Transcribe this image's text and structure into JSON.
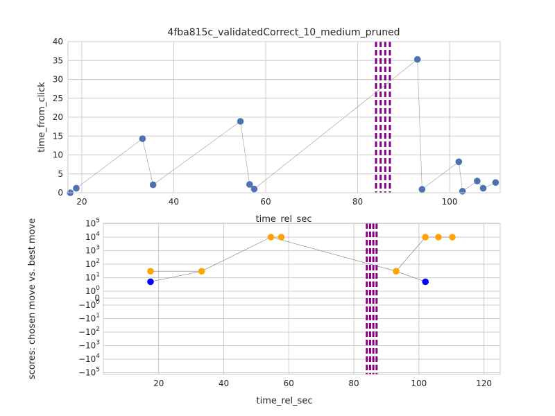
{
  "chart_data": [
    {
      "type": "scatter",
      "title": "4fba815c_validatedCorrect_10_medium_pruned",
      "xlabel": "time_rel_sec",
      "ylabel": "time_from_click",
      "xlim": [
        17,
        111
      ],
      "ylim": [
        0,
        40
      ],
      "xticks": [
        "20",
        "40",
        "60",
        "80",
        "100"
      ],
      "xtick_values": [
        20,
        40,
        60,
        80,
        100
      ],
      "yticks": [
        "0",
        "5",
        "10",
        "15",
        "20",
        "25",
        "30",
        "35",
        "40"
      ],
      "ytick_values": [
        0,
        5,
        10,
        15,
        20,
        25,
        30,
        35,
        40
      ],
      "grid": true,
      "point_color": "#4c72b0",
      "line_color": "#999999",
      "points": [
        {
          "x": 17.5,
          "y": 0.0
        },
        {
          "x": 18.8,
          "y": 1.2
        },
        {
          "x": 33.2,
          "y": 14.3
        },
        {
          "x": 35.5,
          "y": 2.1
        },
        {
          "x": 54.5,
          "y": 18.9
        },
        {
          "x": 56.5,
          "y": 2.2
        },
        {
          "x": 57.5,
          "y": 1.0
        },
        {
          "x": 93.0,
          "y": 35.3
        },
        {
          "x": 94.0,
          "y": 0.9
        },
        {
          "x": 102.0,
          "y": 8.2
        },
        {
          "x": 102.8,
          "y": 0.4
        },
        {
          "x": 106.0,
          "y": 3.1
        },
        {
          "x": 107.3,
          "y": 1.2
        },
        {
          "x": 110.0,
          "y": 2.7
        }
      ],
      "vertical_lines": {
        "x": [
          84.0,
          85.0,
          86.0,
          87.0
        ],
        "color": "#800080",
        "style": "dashed"
      }
    },
    {
      "type": "scatter",
      "xlabel": "time_rel_sec",
      "ylabel": "scores: chosen move vs. best move",
      "xlim": [
        3,
        125
      ],
      "yscale": "symlog",
      "ylim_exponent": [
        -5,
        5
      ],
      "xticks": [
        "20",
        "40",
        "60",
        "80",
        "100",
        "120"
      ],
      "xtick_values": [
        20,
        40,
        60,
        80,
        100,
        120
      ],
      "yticks": [
        {
          "base": "10",
          "exp": "5",
          "value": 100000
        },
        {
          "base": "10",
          "exp": "4",
          "value": 10000
        },
        {
          "base": "10",
          "exp": "3",
          "value": 1000
        },
        {
          "base": "10",
          "exp": "2",
          "value": 100
        },
        {
          "base": "10",
          "exp": "1",
          "value": 10
        },
        {
          "base": "10",
          "exp": "0",
          "value": 1
        },
        {
          "base": "0",
          "exp": "",
          "value": 0
        },
        {
          "base": "−10",
          "exp": "0",
          "value": -1
        },
        {
          "base": "−10",
          "exp": "1",
          "value": -10
        },
        {
          "base": "−10",
          "exp": "2",
          "value": -100
        },
        {
          "base": "−10",
          "exp": "3",
          "value": -1000
        },
        {
          "base": "−10",
          "exp": "4",
          "value": -10000
        },
        {
          "base": "−10",
          "exp": "5",
          "value": -100000
        }
      ],
      "grid": true,
      "line_color": "#777777",
      "series": [
        {
          "color": "#ffa500",
          "points": [
            {
              "x": 17.5,
              "y": 30
            },
            {
              "x": 33.2,
              "y": 30
            },
            {
              "x": 54.5,
              "y": 10000
            },
            {
              "x": 57.7,
              "y": 10000
            },
            {
              "x": 93.0,
              "y": 30
            },
            {
              "x": 102.0,
              "y": 10000
            },
            {
              "x": 106.0,
              "y": 10000
            },
            {
              "x": 110.3,
              "y": 10000
            }
          ]
        },
        {
          "color": "#0000ff",
          "points": [
            {
              "x": 17.5,
              "y": 5
            },
            {
              "x": 102.0,
              "y": 5
            }
          ]
        }
      ],
      "connector_pairs": [
        [
          [
            17.5,
            30
          ],
          [
            33.2,
            30
          ]
        ],
        [
          [
            17.5,
            5
          ],
          [
            33.2,
            30
          ]
        ],
        [
          [
            33.2,
            30
          ],
          [
            54.5,
            10000
          ]
        ],
        [
          [
            54.5,
            10000
          ],
          [
            57.7,
            10000
          ]
        ],
        [
          [
            54.5,
            10000
          ],
          [
            93.0,
            30
          ]
        ],
        [
          [
            93.0,
            30
          ],
          [
            102.0,
            5
          ]
        ],
        [
          [
            93.0,
            30
          ],
          [
            102.0,
            10000
          ]
        ],
        [
          [
            102.0,
            10000
          ],
          [
            106.0,
            10000
          ]
        ],
        [
          [
            106.0,
            10000
          ],
          [
            110.3,
            10000
          ]
        ]
      ],
      "vertical_lines": {
        "x": [
          84.0,
          85.0,
          86.0,
          87.0
        ],
        "color": "#800080",
        "style": "dashed"
      }
    }
  ]
}
